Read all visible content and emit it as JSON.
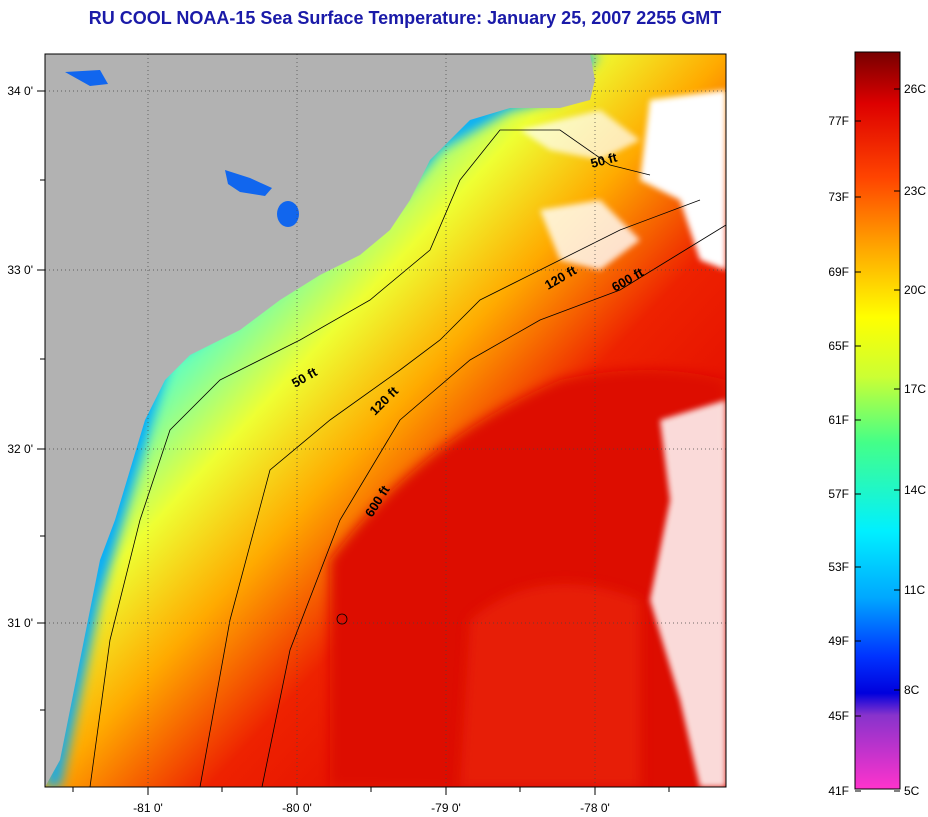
{
  "title": "RU COOL  NOAA-15  Sea Surface Temperature:  January 25, 2007 2255 GMT",
  "colors": {
    "land": "#b2b2b2",
    "title": "#1a1aa8",
    "cloud": "#ffffff"
  },
  "map": {
    "lat_ticks": [
      "34 0'",
      "33 0'",
      "32 0'",
      "31 0'"
    ],
    "lon_ticks": [
      "-81 0'",
      "-80 0'",
      "-79 0'",
      "-78 0'"
    ],
    "contour_labels": [
      {
        "text": "50 ft",
        "rotate": -15
      },
      {
        "text": "120 ft",
        "rotate": -30
      },
      {
        "text": "600 ft",
        "rotate": -30
      },
      {
        "text": "50 ft",
        "rotate": -30
      },
      {
        "text": "120 ft",
        "rotate": -45
      },
      {
        "text": "600 ft",
        "rotate": -58
      }
    ]
  },
  "colorbar": {
    "fahrenheit_labels": [
      "77F",
      "73F",
      "69F",
      "65F",
      "61F",
      "57F",
      "53F",
      "49F",
      "45F",
      "41F"
    ],
    "celsius_labels": [
      "26C",
      "23C",
      "20C",
      "17C",
      "14C",
      "11C",
      "8C",
      "5C"
    ]
  }
}
